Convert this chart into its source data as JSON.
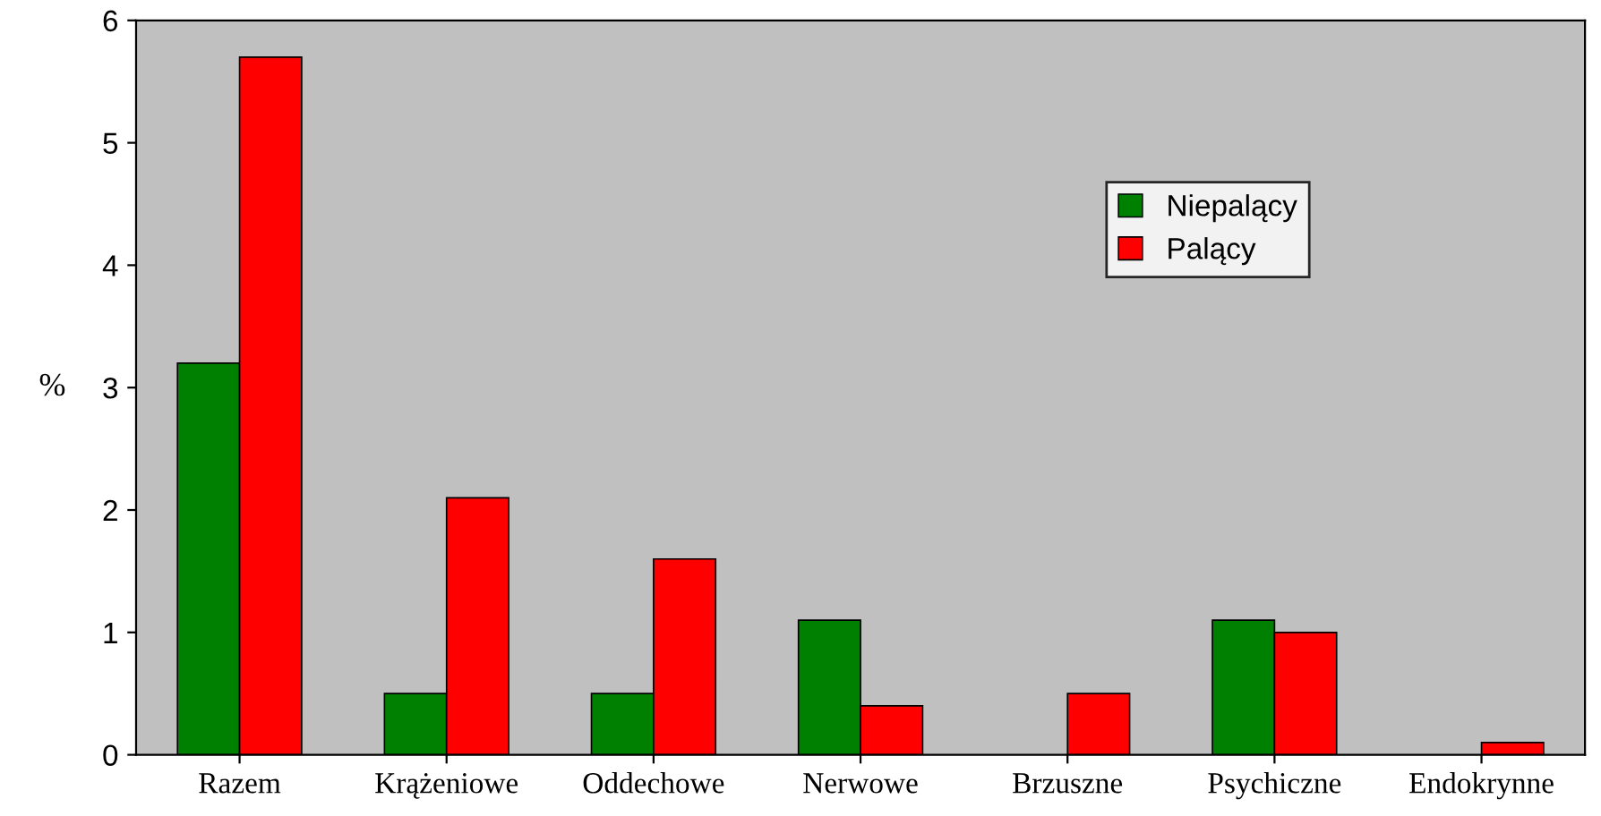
{
  "chart_data": {
    "type": "bar",
    "ylabel": "%",
    "categories": [
      "Razem",
      "Krążeniowe",
      "Oddechowe",
      "Nerwowe",
      "Brzuszne",
      "Psychiczne",
      "Endokrynne"
    ],
    "series": [
      {
        "name": "Niepalący",
        "color": "#008000",
        "values": [
          3.2,
          0.5,
          0.5,
          1.1,
          0,
          1.1,
          0
        ]
      },
      {
        "name": "Palący",
        "color": "#ff0000",
        "values": [
          5.7,
          2.1,
          1.6,
          0.4,
          0.5,
          1.0,
          0.1
        ]
      }
    ],
    "ylim": [
      0,
      6
    ],
    "yticks": [
      0,
      1,
      2,
      3,
      4,
      5,
      6
    ],
    "grid": false,
    "legend": "top right"
  }
}
